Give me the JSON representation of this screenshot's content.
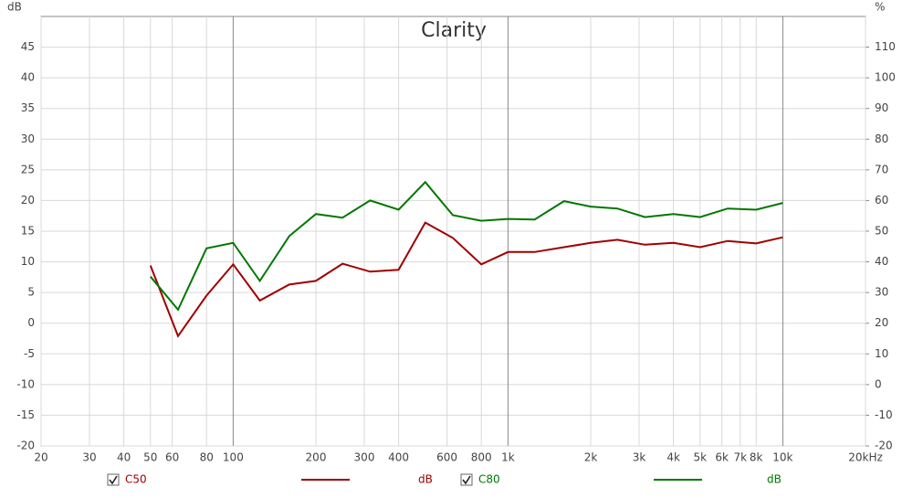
{
  "chart_data": {
    "type": "line",
    "title": "Clarity",
    "ylabel": "dB",
    "y2label": "%",
    "x": [
      50,
      63,
      80,
      100,
      125,
      160,
      200,
      250,
      315,
      400,
      500,
      630,
      800,
      1000,
      1250,
      1600,
      2000,
      2500,
      3150,
      4000,
      5000,
      6300,
      8000,
      10000
    ],
    "series": [
      {
        "name": "C50",
        "unit": "dB",
        "color": "#a00000",
        "values": [
          9.4,
          -2.1,
          4.5,
          9.6,
          3.7,
          6.3,
          6.9,
          9.7,
          8.4,
          8.7,
          16.4,
          13.9,
          9.6,
          11.6,
          11.6,
          12.4,
          13.1,
          13.6,
          12.8,
          13.1,
          12.4,
          13.4,
          13.0,
          14.0
        ]
      },
      {
        "name": "C80",
        "unit": "dB",
        "color": "#007800",
        "values": [
          7.6,
          2.2,
          12.2,
          13.1,
          6.9,
          14.2,
          17.8,
          17.2,
          20.0,
          18.5,
          23.0,
          17.6,
          16.7,
          17.0,
          16.9,
          19.9,
          19.0,
          18.7,
          17.3,
          17.8,
          17.3,
          18.7,
          18.5,
          19.6
        ]
      }
    ],
    "xscale": "log",
    "xlim": [
      20,
      20000
    ],
    "xticks": [
      20,
      30,
      40,
      50,
      60,
      80,
      100,
      200,
      300,
      400,
      600,
      800,
      {
        "value": 1000,
        "label": "1k"
      },
      {
        "value": 2000,
        "label": "2k"
      },
      {
        "value": 3000,
        "label": "3k"
      },
      {
        "value": 4000,
        "label": "4k"
      },
      {
        "value": 5000,
        "label": "5k"
      },
      {
        "value": 6000,
        "label": "6k"
      },
      {
        "value": 7000,
        "label": "7k"
      },
      {
        "value": 8000,
        "label": "8k"
      },
      {
        "value": 10000,
        "label": "10k"
      },
      {
        "value": 20000,
        "label": "20kHz"
      }
    ],
    "ylim": [
      -20,
      50
    ],
    "yticks": [
      -20,
      -15,
      -10,
      -5,
      0,
      5,
      10,
      15,
      20,
      25,
      30,
      35,
      40,
      45
    ],
    "y2lim": [
      -20,
      120
    ],
    "y2ticks": [
      -20,
      -10,
      0,
      10,
      20,
      30,
      40,
      50,
      60,
      70,
      80,
      90,
      100,
      110
    ],
    "grid": true,
    "legend": "bottom"
  }
}
